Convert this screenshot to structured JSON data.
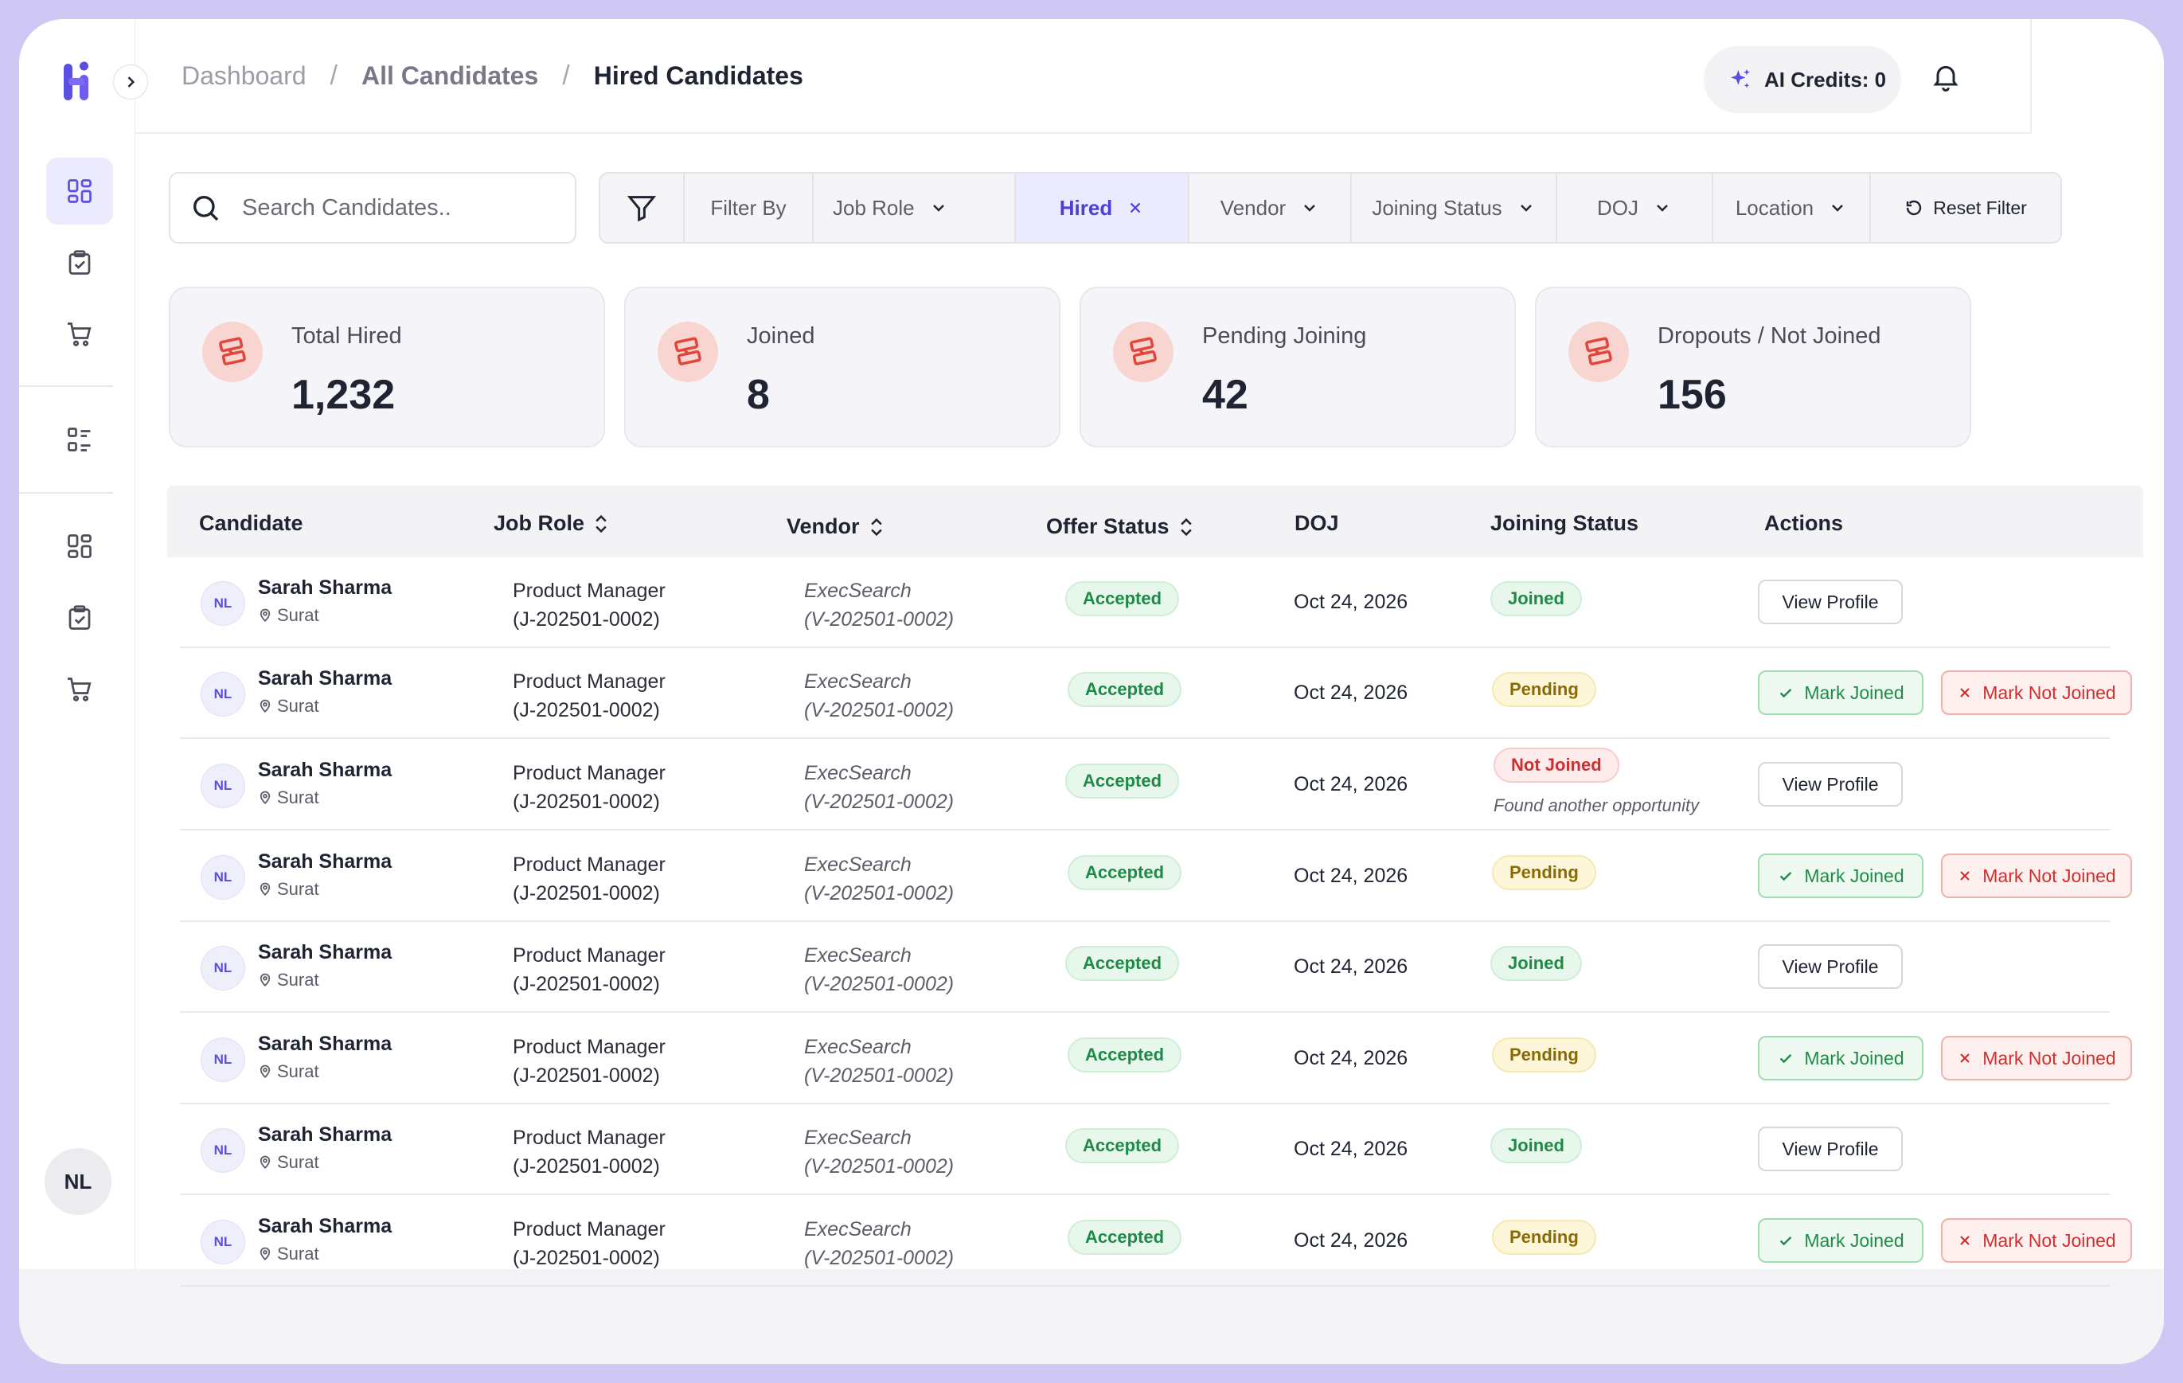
{
  "breadcrumb": [
    "Dashboard",
    "All Candidates",
    "Hired Candidates"
  ],
  "header": {
    "credits_label": "AI Credits: 0"
  },
  "user": {
    "initials": "NL"
  },
  "search": {
    "placeholder": "Search Candidates.."
  },
  "filters": {
    "filter_by_label": "Filter By",
    "items": [
      {
        "label": "Job Role",
        "type": "dropdown"
      },
      {
        "label": "Hired",
        "type": "active-chip"
      },
      {
        "label": "Vendor",
        "type": "dropdown"
      },
      {
        "label": "Joining Status",
        "type": "dropdown"
      },
      {
        "label": "DOJ",
        "type": "dropdown"
      },
      {
        "label": "Location",
        "type": "dropdown"
      }
    ],
    "reset_label": "Reset Filter"
  },
  "stats": [
    {
      "label": "Total Hired",
      "value": "1,232"
    },
    {
      "label": "Joined",
      "value": "8"
    },
    {
      "label": "Pending Joining",
      "value": "42"
    },
    {
      "label": "Dropouts / Not Joined",
      "value": "156"
    }
  ],
  "table": {
    "columns": [
      "Candidate",
      "Job Role",
      "Vendor",
      "Offer Status",
      "DOJ",
      "Joining Status",
      "Actions"
    ],
    "actions": {
      "view": "View Profile",
      "mark_joined": "Mark Joined",
      "mark_not_joined": "Mark Not Joined"
    },
    "rows": [
      {
        "initials": "NL",
        "name": "Sarah Sharma",
        "location": "Surat",
        "job_role": "Product Manager",
        "job_id": "(J-202501-0002)",
        "vendor": "ExecSearch",
        "vendor_id": "(V-202501-0002)",
        "offer_status": "Accepted",
        "doj": "Oct 24, 2026",
        "joining_status": "Joined",
        "reason": ""
      },
      {
        "initials": "NL",
        "name": "Sarah Sharma",
        "location": "Surat",
        "job_role": "Product Manager",
        "job_id": "(J-202501-0002)",
        "vendor": "ExecSearch",
        "vendor_id": "(V-202501-0002)",
        "offer_status": "Accepted",
        "doj": "Oct 24, 2026",
        "joining_status": "Pending",
        "reason": ""
      },
      {
        "initials": "NL",
        "name": "Sarah Sharma",
        "location": "Surat",
        "job_role": "Product Manager",
        "job_id": "(J-202501-0002)",
        "vendor": "ExecSearch",
        "vendor_id": "(V-202501-0002)",
        "offer_status": "Accepted",
        "doj": "Oct 24, 2026",
        "joining_status": "Not Joined",
        "reason": "Found another opportunity"
      },
      {
        "initials": "NL",
        "name": "Sarah Sharma",
        "location": "Surat",
        "job_role": "Product Manager",
        "job_id": "(J-202501-0002)",
        "vendor": "ExecSearch",
        "vendor_id": "(V-202501-0002)",
        "offer_status": "Accepted",
        "doj": "Oct 24, 2026",
        "joining_status": "Pending",
        "reason": ""
      },
      {
        "initials": "NL",
        "name": "Sarah Sharma",
        "location": "Surat",
        "job_role": "Product Manager",
        "job_id": "(J-202501-0002)",
        "vendor": "ExecSearch",
        "vendor_id": "(V-202501-0002)",
        "offer_status": "Accepted",
        "doj": "Oct 24, 2026",
        "joining_status": "Joined",
        "reason": ""
      },
      {
        "initials": "NL",
        "name": "Sarah Sharma",
        "location": "Surat",
        "job_role": "Product Manager",
        "job_id": "(J-202501-0002)",
        "vendor": "ExecSearch",
        "vendor_id": "(V-202501-0002)",
        "offer_status": "Accepted",
        "doj": "Oct 24, 2026",
        "joining_status": "Pending",
        "reason": ""
      },
      {
        "initials": "NL",
        "name": "Sarah Sharma",
        "location": "Surat",
        "job_role": "Product Manager",
        "job_id": "(J-202501-0002)",
        "vendor": "ExecSearch",
        "vendor_id": "(V-202501-0002)",
        "offer_status": "Accepted",
        "doj": "Oct 24, 2026",
        "joining_status": "Joined",
        "reason": ""
      },
      {
        "initials": "NL",
        "name": "Sarah Sharma",
        "location": "Surat",
        "job_role": "Product Manager",
        "job_id": "(J-202501-0002)",
        "vendor": "ExecSearch",
        "vendor_id": "(V-202501-0002)",
        "offer_status": "Accepted",
        "doj": "Oct 24, 2026",
        "joining_status": "Pending",
        "reason": ""
      }
    ]
  },
  "colors": {
    "brand": "#5b4fe0",
    "accent_bg": "#ecebfd",
    "success": "#1f8a47",
    "warning": "#8a6a06",
    "danger": "#cf2f2f"
  },
  "icons": [
    "logo-icon",
    "chevron-right-icon",
    "dashboard-icon",
    "clipboard-check-icon",
    "cart-icon",
    "list-icon",
    "sparkle-icon",
    "bell-icon",
    "search-icon",
    "filter-icon",
    "chevron-down-icon",
    "close-icon",
    "reset-icon",
    "handshake-icon",
    "sort-icon",
    "location-pin-icon",
    "check-icon"
  ]
}
